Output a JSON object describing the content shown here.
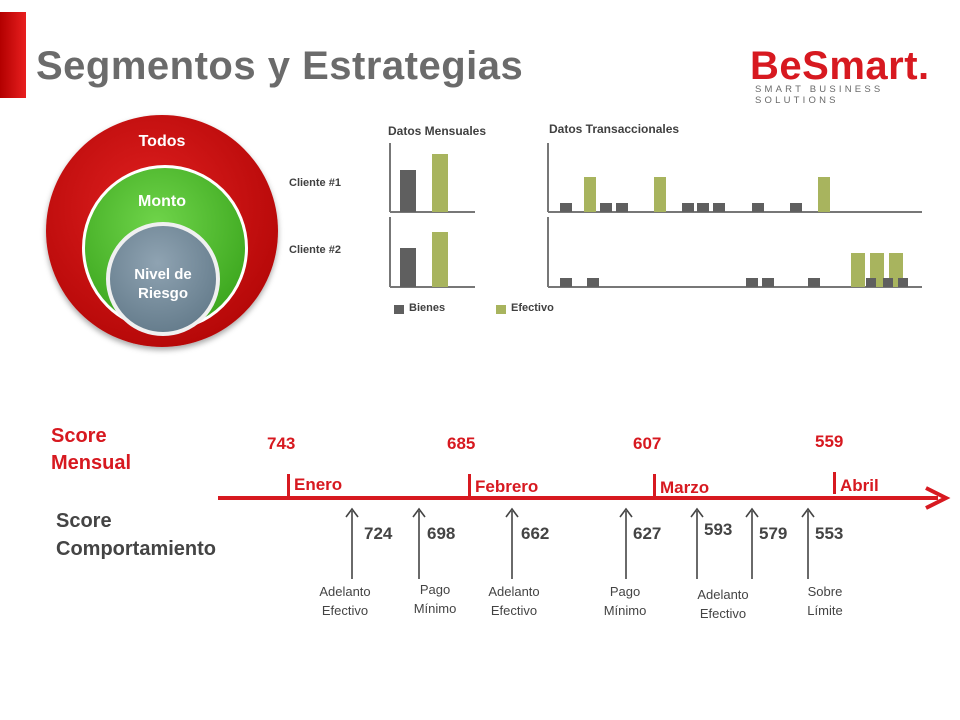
{
  "header": {
    "title": "Segmentos y Estrategias",
    "logo_main": "BeSmart.",
    "logo_sub": "SMART BUSINESS SOLUTIONS",
    "accent": "#d71920"
  },
  "segments": {
    "outer": "Todos",
    "middle": "Monto",
    "inner_line1": "Nivel de",
    "inner_line2": "Riesgo",
    "colors": {
      "outer": "#cc0000",
      "middle": "#4cc02a",
      "inner": "#6f8696"
    }
  },
  "charts": {
    "monthly_title": "Datos Mensuales",
    "transactional_title": "Datos Transaccionales",
    "client1": "Cliente #1",
    "client2": "Cliente #2",
    "legend": {
      "goods": "Bienes",
      "cash": "Efectivo"
    },
    "colors": {
      "goods": "#5f5f5f",
      "cash": "#a8b45e"
    }
  },
  "timeline": {
    "score_mensual": "Score\nMensual",
    "score_comportamiento": "Score\nComportamiento",
    "months": [
      {
        "label": "Enero",
        "score": "743"
      },
      {
        "label": "Febrero",
        "score": "685"
      },
      {
        "label": "Marzo",
        "score": "607"
      },
      {
        "label": "Abril",
        "score": "559"
      }
    ],
    "behavior_scores": [
      "724",
      "698",
      "662",
      "627",
      "593",
      "579",
      "553"
    ],
    "events": [
      {
        "label": "Adelanto\nEfectivo"
      },
      {
        "label": "Pago\nMínimo"
      },
      {
        "label": "Adelanto\nEfectivo"
      },
      {
        "label": "Pago\nMínimo"
      },
      {
        "label": "Adelanto\nEfectivo"
      },
      {
        "label": "Sobre\nLímite"
      }
    ]
  }
}
